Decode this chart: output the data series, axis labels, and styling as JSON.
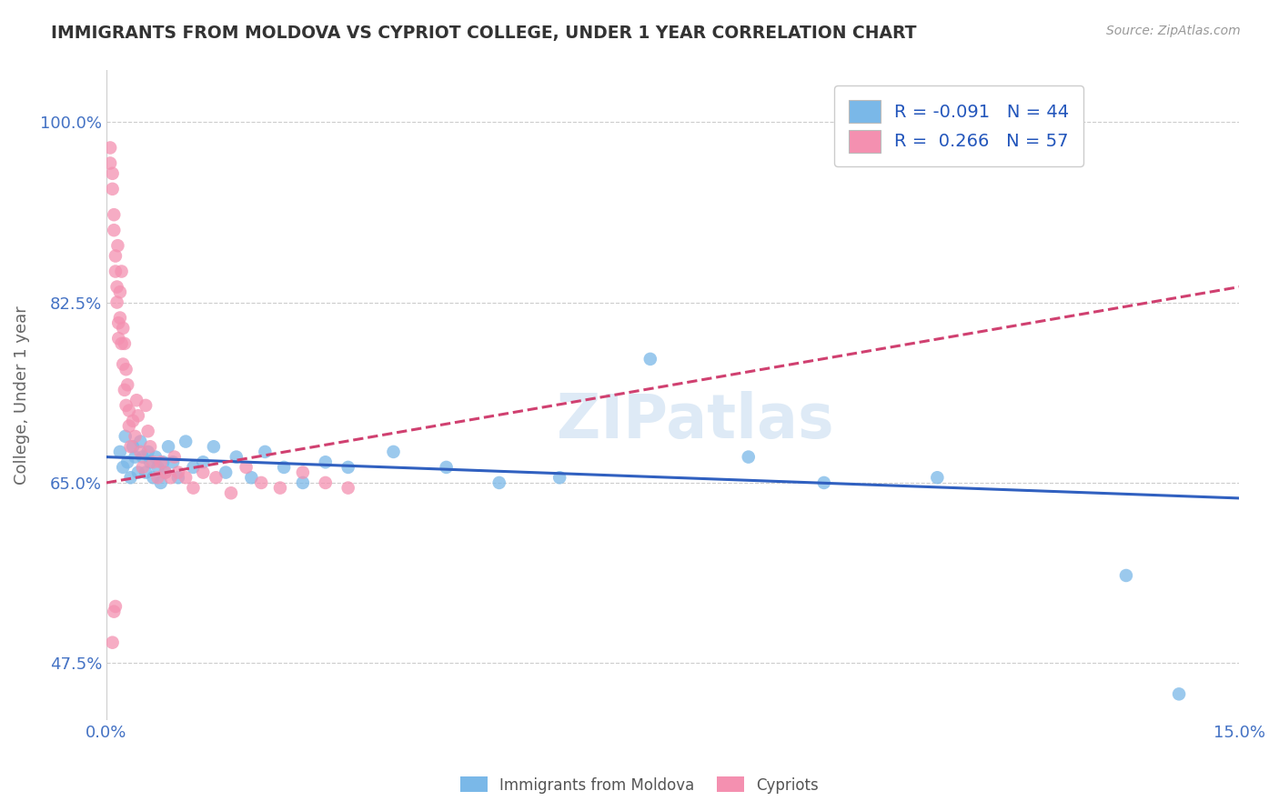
{
  "title": "IMMIGRANTS FROM MOLDOVA VS CYPRIOT COLLEGE, UNDER 1 YEAR CORRELATION CHART",
  "source": "Source: ZipAtlas.com",
  "ylabel": "College, Under 1 year",
  "xmin": 0.0,
  "xmax": 15.0,
  "ymin": 42.0,
  "ymax": 105.0,
  "yticks": [
    47.5,
    65.0,
    82.5,
    100.0
  ],
  "xticks": [
    0.0,
    15.0
  ],
  "blue_color": "#7ab8e8",
  "pink_color": "#f490b0",
  "blue_line_color": "#3060c0",
  "pink_line_color": "#d04070",
  "watermark": "ZIPatlas",
  "blue_line_x0": 0.0,
  "blue_line_x1": 15.0,
  "blue_line_y0": 67.5,
  "blue_line_y1": 63.5,
  "pink_line_x0": 0.0,
  "pink_line_x1": 15.0,
  "pink_line_y0": 65.0,
  "pink_line_y1": 84.0,
  "blue_scatter_x": [
    0.18,
    0.22,
    0.25,
    0.28,
    0.32,
    0.35,
    0.38,
    0.42,
    0.45,
    0.48,
    0.52,
    0.55,
    0.58,
    0.62,
    0.65,
    0.68,
    0.72,
    0.75,
    0.78,
    0.82,
    0.88,
    0.95,
    1.05,
    1.15,
    1.28,
    1.42,
    1.58,
    1.72,
    1.92,
    2.1,
    2.35,
    2.6,
    2.9,
    3.2,
    3.8,
    4.5,
    5.2,
    6.0,
    7.2,
    8.5,
    9.5,
    11.0,
    13.5,
    14.2
  ],
  "blue_scatter_y": [
    68.0,
    66.5,
    69.5,
    67.0,
    65.5,
    68.5,
    67.5,
    66.0,
    69.0,
    67.5,
    66.0,
    68.0,
    67.0,
    65.5,
    67.5,
    66.5,
    65.0,
    67.0,
    66.0,
    68.5,
    67.0,
    65.5,
    69.0,
    66.5,
    67.0,
    68.5,
    66.0,
    67.5,
    65.5,
    68.0,
    66.5,
    65.0,
    67.0,
    66.5,
    68.0,
    66.5,
    65.0,
    65.5,
    77.0,
    67.5,
    65.0,
    65.5,
    56.0,
    44.5
  ],
  "pink_scatter_x": [
    0.05,
    0.05,
    0.08,
    0.08,
    0.1,
    0.1,
    0.12,
    0.12,
    0.14,
    0.14,
    0.16,
    0.16,
    0.18,
    0.18,
    0.2,
    0.2,
    0.22,
    0.22,
    0.24,
    0.24,
    0.26,
    0.26,
    0.28,
    0.3,
    0.3,
    0.32,
    0.35,
    0.38,
    0.4,
    0.42,
    0.45,
    0.48,
    0.52,
    0.55,
    0.58,
    0.62,
    0.68,
    0.72,
    0.78,
    0.85,
    0.9,
    0.95,
    1.05,
    1.15,
    1.28,
    1.45,
    1.65,
    1.85,
    2.05,
    2.3,
    2.6,
    2.9,
    3.2,
    0.15,
    0.1,
    0.08,
    0.12
  ],
  "pink_scatter_y": [
    96.0,
    97.5,
    93.5,
    95.0,
    91.0,
    89.5,
    87.0,
    85.5,
    84.0,
    82.5,
    80.5,
    79.0,
    83.5,
    81.0,
    85.5,
    78.5,
    80.0,
    76.5,
    78.5,
    74.0,
    76.0,
    72.5,
    74.5,
    72.0,
    70.5,
    68.5,
    71.0,
    69.5,
    73.0,
    71.5,
    68.0,
    66.5,
    72.5,
    70.0,
    68.5,
    67.0,
    65.5,
    67.0,
    66.0,
    65.5,
    67.5,
    66.0,
    65.5,
    64.5,
    66.0,
    65.5,
    64.0,
    66.5,
    65.0,
    64.5,
    66.0,
    65.0,
    64.5,
    88.0,
    52.5,
    49.5,
    53.0
  ]
}
